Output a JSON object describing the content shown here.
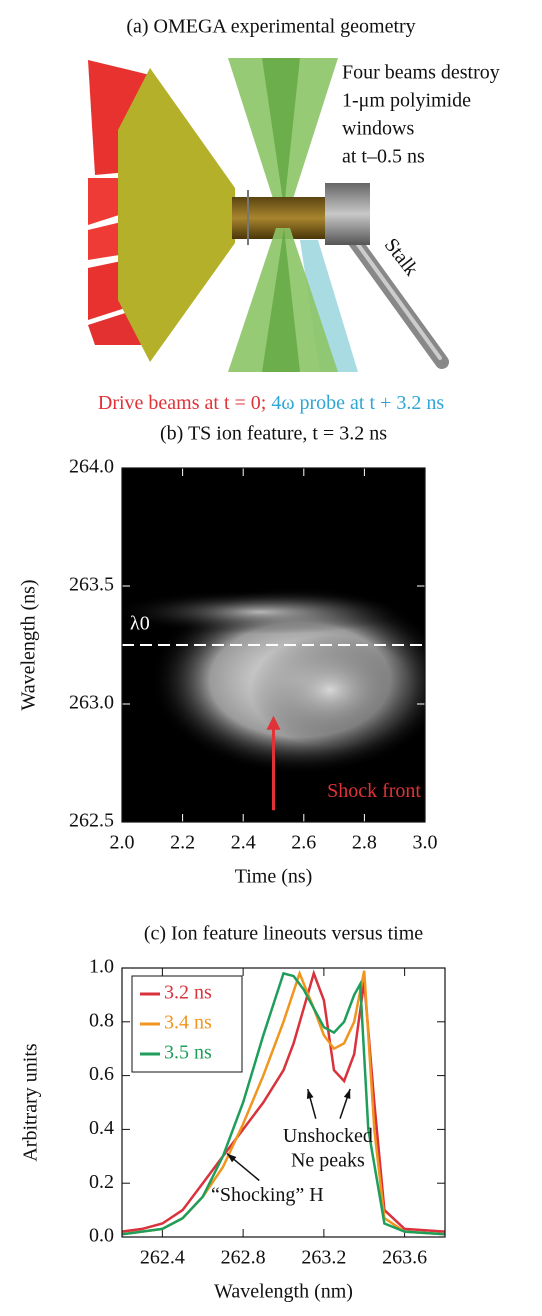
{
  "diagram": {
    "title": "(a) OMEGA experimental geometry",
    "note_lines": [
      "Four beams destroy",
      "1-μm polyimide",
      "windows",
      "at t–0.5 ns"
    ],
    "stalk_label": "Stalk",
    "caption_drive": "Drive beams at t = 0; ",
    "caption_probe": "4ω probe at t + 3.2 ns"
  },
  "chart_data": [
    {
      "type": "heatmap",
      "title": "(b) TS ion feature, t = 3.2 ns",
      "x_label": "Time (ns)",
      "y_label": "Wavelength (ns)",
      "xlim": [
        2.0,
        3.0
      ],
      "ylim": [
        262.5,
        264.0
      ],
      "xticks": [
        {
          "value": 2.0,
          "label": "2.0"
        },
        2.2,
        2.4,
        2.6,
        2.8,
        {
          "value": 3.0,
          "label": "3.0"
        }
      ],
      "yticks": [
        262.5,
        {
          "value": 263.0,
          "label": "263.0"
        },
        263.5,
        {
          "value": 264.0,
          "label": "264.0"
        }
      ],
      "reference_line": {
        "label": "λ0",
        "value": 263.25
      },
      "arrow_annotation": {
        "text": "Shock front",
        "x": 2.5,
        "y_from": 262.55,
        "y_to": 262.95
      }
    },
    {
      "type": "line",
      "title": "(c) Ion feature lineouts versus time",
      "x_label": "Wavelength (nm)",
      "y_label": "Arbitrary units",
      "xlim": [
        262.2,
        263.8
      ],
      "ylim": [
        0,
        1.0
      ],
      "xticks": [
        262.4,
        262.8,
        263.2,
        263.6
      ],
      "yticks": [
        {
          "value": 0,
          "label": "0.0"
        },
        0.2,
        0.4,
        0.6,
        0.8,
        {
          "value": 1.0,
          "label": "1.0"
        }
      ],
      "legend": "upper left",
      "annotations": [
        "Unshocked",
        "Ne peaks",
        "“Shocking” H"
      ],
      "series": [
        {
          "name": "3.2 ns",
          "color": "#d9323c",
          "x": [
            262.2,
            262.3,
            262.4,
            262.5,
            262.6,
            262.7,
            262.8,
            262.9,
            263.0,
            263.05,
            263.1,
            263.15,
            263.2,
            263.25,
            263.3,
            263.35,
            263.4,
            263.45,
            263.5,
            263.6,
            263.8
          ],
          "values": [
            0.02,
            0.03,
            0.05,
            0.1,
            0.2,
            0.3,
            0.4,
            0.5,
            0.62,
            0.72,
            0.85,
            0.98,
            0.88,
            0.62,
            0.58,
            0.68,
            0.95,
            0.5,
            0.1,
            0.03,
            0.02
          ]
        },
        {
          "name": "3.4 ns",
          "color": "#f0951e",
          "x": [
            262.2,
            262.4,
            262.5,
            262.6,
            262.7,
            262.8,
            262.9,
            263.0,
            263.08,
            263.15,
            263.2,
            263.25,
            263.3,
            263.35,
            263.4,
            263.45,
            263.5,
            263.6,
            263.8
          ],
          "values": [
            0.01,
            0.03,
            0.07,
            0.15,
            0.26,
            0.42,
            0.6,
            0.8,
            0.98,
            0.85,
            0.75,
            0.7,
            0.72,
            0.8,
            0.99,
            0.4,
            0.07,
            0.02,
            0.01
          ]
        },
        {
          "name": "3.5 ns",
          "color": "#1e9e5a",
          "x": [
            262.2,
            262.4,
            262.5,
            262.6,
            262.7,
            262.8,
            262.9,
            263.0,
            263.05,
            263.1,
            263.15,
            263.2,
            263.25,
            263.3,
            263.35,
            263.38,
            263.42,
            263.5,
            263.6,
            263.8
          ],
          "values": [
            0.01,
            0.03,
            0.07,
            0.15,
            0.3,
            0.5,
            0.75,
            0.98,
            0.97,
            0.92,
            0.85,
            0.78,
            0.76,
            0.8,
            0.9,
            0.94,
            0.4,
            0.05,
            0.02,
            0.01
          ]
        }
      ]
    }
  ]
}
